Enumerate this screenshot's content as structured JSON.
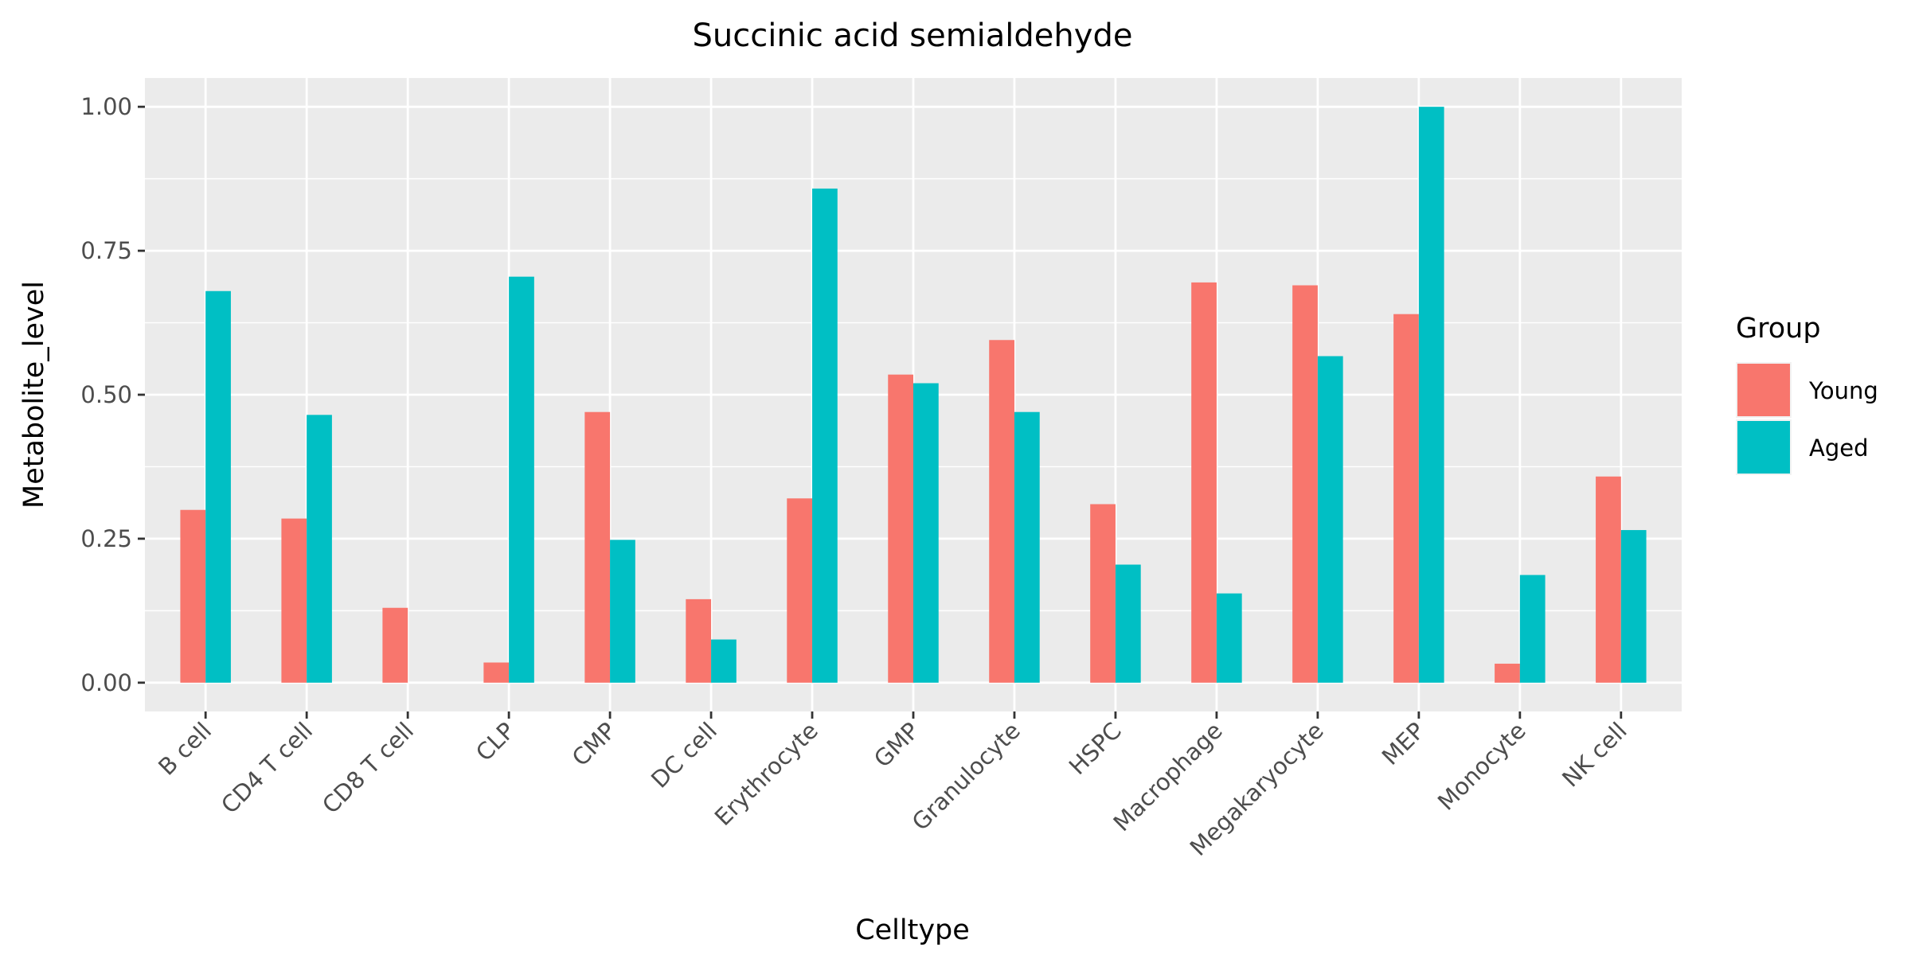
{
  "chart_data": {
    "type": "bar",
    "title": "Succinic acid semialdehyde",
    "xlabel": "Celltype",
    "ylabel": "Metabolite_level",
    "ylim": [
      -0.05,
      1.05
    ],
    "yticks": [
      0,
      0.25,
      0.5,
      0.75,
      1.0
    ],
    "ytick_labels": [
      "0.00",
      "0.25",
      "0.50",
      "0.75",
      "1.00"
    ],
    "grid": true,
    "legend_title": "Group",
    "legend_position": "right",
    "categories": [
      "B cell",
      "CD4 T cell",
      "CD8 T cell",
      "CLP",
      "CMP",
      "DC cell",
      "Erythrocyte",
      "GMP",
      "Granulocyte",
      "HSPC",
      "Macrophage",
      "Megakaryocyte",
      "MEP",
      "Monocyte",
      "NK cell"
    ],
    "series": [
      {
        "name": "Young",
        "color": "#F8766D",
        "values": [
          0.3,
          0.285,
          0.13,
          0.035,
          0.47,
          0.145,
          0.32,
          0.535,
          0.595,
          0.31,
          0.695,
          0.69,
          0.64,
          0.033,
          0.358
        ]
      },
      {
        "name": "Aged",
        "color": "#00BFC4",
        "values": [
          0.68,
          0.465,
          0,
          0.705,
          0.248,
          0.075,
          0.858,
          0.52,
          0.47,
          0.205,
          0.155,
          0.567,
          1.0,
          0.187,
          0.265
        ]
      }
    ]
  },
  "colors": {
    "panel_background": "#EBEBEB",
    "grid_line": "#FFFFFF",
    "tick_mark": "#333333"
  }
}
